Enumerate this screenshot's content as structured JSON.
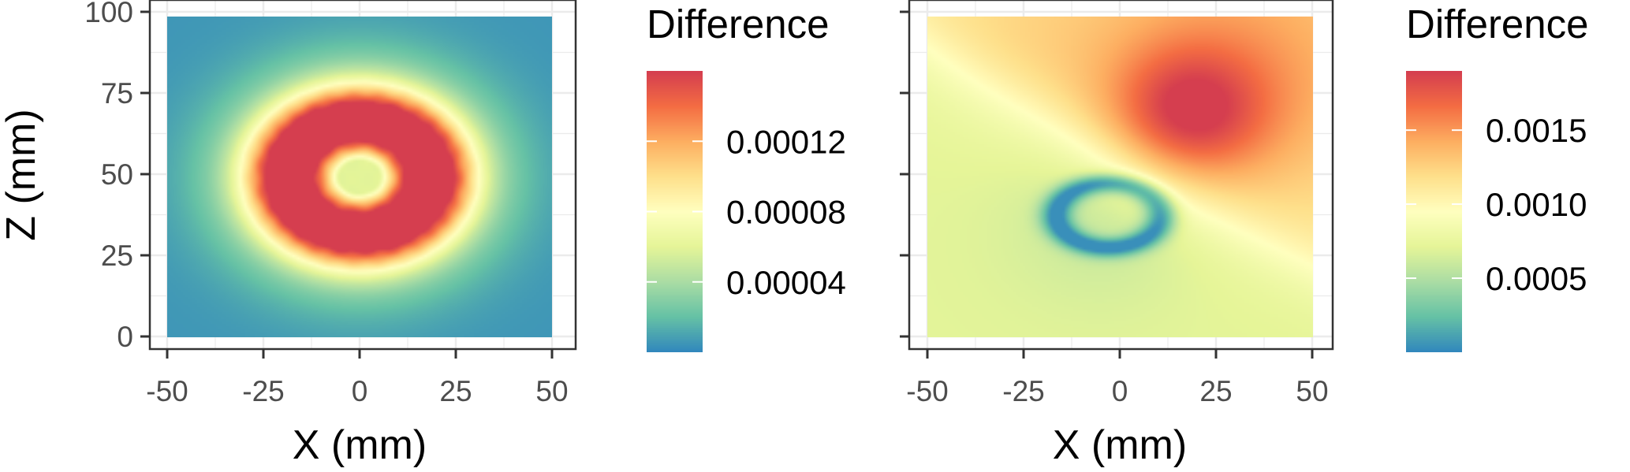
{
  "colors": {
    "scale": [
      "#3288BD",
      "#66C2A5",
      "#ABDDA4",
      "#E6F598",
      "#FFFFBF",
      "#FEE08B",
      "#FDAE61",
      "#F46D43",
      "#D53E4F"
    ],
    "panel_background": "#ffffff",
    "grid": "#ebebeb",
    "panel_border": "#333333",
    "tick_text": "#4d4d4d"
  },
  "chart_data": [
    {
      "type": "heatmap",
      "panel": "left",
      "title": "",
      "xlabel": "X (mm)",
      "ylabel": "Z (mm)",
      "xlim": [
        -50,
        50
      ],
      "ylim": [
        0,
        100
      ],
      "x_ticks": [
        "-50",
        "-25",
        "0",
        "25",
        "50"
      ],
      "y_ticks": [
        "0",
        "25",
        "50",
        "75",
        "100"
      ],
      "grid": true,
      "legend": {
        "title": "Difference",
        "position": "right",
        "range": [
          0.0,
          0.00016
        ],
        "breaks": [
          4e-05,
          8e-05,
          0.00012
        ],
        "labels": [
          "0.00004",
          "0.00008",
          "0.00012"
        ]
      },
      "description_of_field": "ring-shaped maximum (~0.00015) at radius ~18 mm around (0, 50); local minimum (~0.00009) at center; decays to ~0.000005 toward the corners",
      "features": [
        {
          "kind": "ring",
          "center_x": 0,
          "center_z": 50,
          "radius": 18,
          "peak_value": 0.00015
        },
        {
          "kind": "center",
          "x": 0,
          "z": 50,
          "value": 9e-05
        },
        {
          "kind": "background",
          "value": 5e-06
        }
      ]
    },
    {
      "type": "heatmap",
      "panel": "right",
      "title": "",
      "xlabel": "X (mm)",
      "ylabel": "",
      "xlim": [
        -50,
        50
      ],
      "ylim": [
        0,
        100
      ],
      "x_ticks": [
        "-50",
        "-25",
        "0",
        "25",
        "50"
      ],
      "y_ticks": [
        "",
        "",
        "",
        "",
        ""
      ],
      "grid": true,
      "legend": {
        "title": "Difference",
        "position": "right",
        "range": [
          0.0,
          0.0019
        ],
        "breaks": [
          0.0005,
          0.001,
          0.0015
        ],
        "labels": [
          "0.0005",
          "0.0010",
          "0.0015"
        ]
      },
      "features": [
        {
          "kind": "maximum",
          "x": 18,
          "z": 70,
          "value": 0.0018
        },
        {
          "kind": "minimum_ring",
          "center_x": -3,
          "center_z": 38,
          "value": 5e-05
        },
        {
          "kind": "upper_left_plateau",
          "x": -30,
          "z": 90,
          "value": 0.0011
        },
        {
          "kind": "lower_region",
          "x": 0,
          "z": 10,
          "value": 0.0007
        }
      ]
    }
  ]
}
